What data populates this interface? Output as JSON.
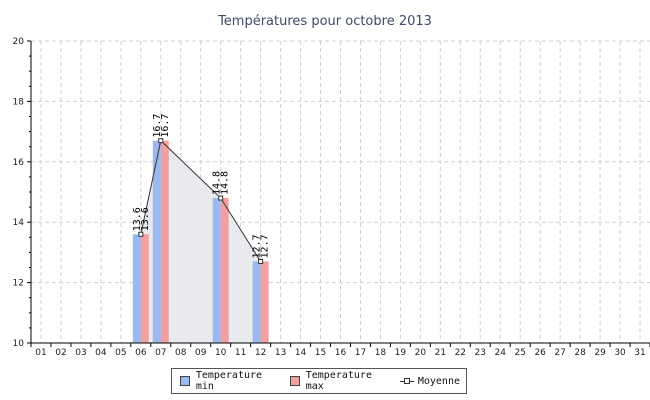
{
  "chart_data": {
    "type": "bar",
    "title": "Températures pour octobre 2013",
    "categories": [
      "01",
      "02",
      "03",
      "04",
      "05",
      "06",
      "07",
      "08",
      "09",
      "10",
      "11",
      "12",
      "13",
      "14",
      "15",
      "16",
      "17",
      "18",
      "19",
      "20",
      "21",
      "22",
      "23",
      "24",
      "25",
      "26",
      "27",
      "28",
      "29",
      "30",
      "31"
    ],
    "series": [
      {
        "name": "Temperature min",
        "kind": "bar",
        "color": "#9bb8f0",
        "values": [
          null,
          null,
          null,
          null,
          null,
          13.6,
          16.7,
          null,
          null,
          14.8,
          null,
          12.7,
          null,
          null,
          null,
          null,
          null,
          null,
          null,
          null,
          null,
          null,
          null,
          null,
          null,
          null,
          null,
          null,
          null,
          null,
          null
        ]
      },
      {
        "name": "Temperature max",
        "kind": "bar",
        "color": "#f0a0a0",
        "values": [
          null,
          null,
          null,
          null,
          null,
          13.6,
          16.7,
          null,
          null,
          14.8,
          null,
          12.7,
          null,
          null,
          null,
          null,
          null,
          null,
          null,
          null,
          null,
          null,
          null,
          null,
          null,
          null,
          null,
          null,
          null,
          null,
          null
        ]
      },
      {
        "name": "Moyenne",
        "kind": "area-line",
        "color": "#333333",
        "fill": "#e8eaee",
        "values": [
          null,
          null,
          null,
          null,
          null,
          13.6,
          16.7,
          null,
          null,
          14.8,
          null,
          12.7,
          null,
          null,
          null,
          null,
          null,
          null,
          null,
          null,
          null,
          null,
          null,
          null,
          null,
          null,
          null,
          null,
          null,
          null,
          null
        ]
      }
    ],
    "yticks": [
      10,
      12,
      14,
      16,
      18,
      20
    ],
    "ylim": [
      10,
      20
    ],
    "grid": true,
    "legend_position": "bottom-center"
  }
}
